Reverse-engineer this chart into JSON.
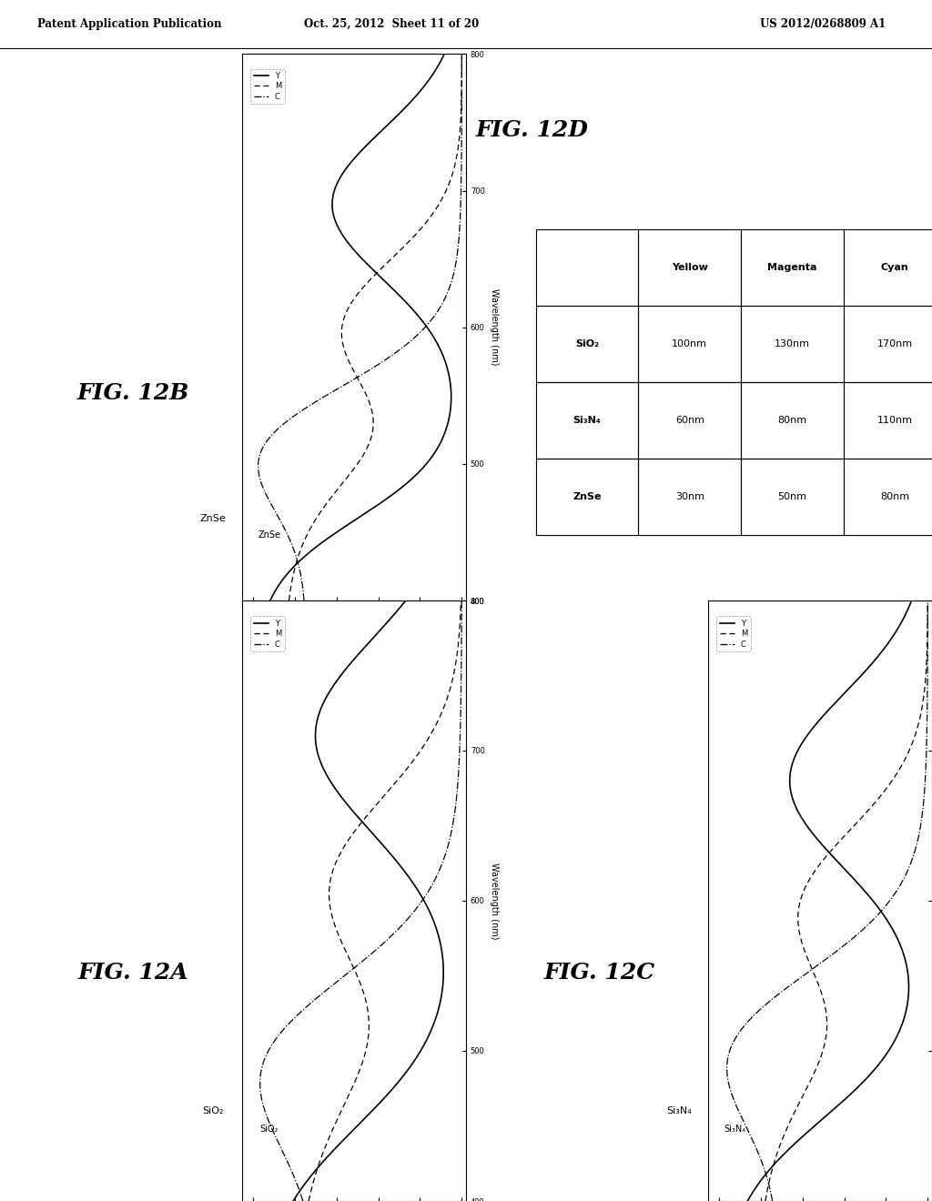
{
  "header_left": "Patent Application Publication",
  "header_mid": "Oct. 25, 2012  Sheet 11 of 20",
  "header_right": "US 2012/0268809 A1",
  "fig12A_title": "FIG. 12A",
  "fig12A_material": "SiO₂",
  "fig12B_title": "FIG. 12B",
  "fig12B_material": "ZnSe",
  "fig12C_title": "FIG. 12C",
  "fig12C_material": "Si₃N₄",
  "fig12D_title": "FIG. 12D",
  "table_rows": [
    [
      "SiO₂",
      "100nm",
      "130nm",
      "170nm"
    ],
    [
      "Si₃N₄",
      "60nm",
      "80nm",
      "110nm"
    ],
    [
      "ZnSe",
      "30nm",
      "50nm",
      "80nm"
    ]
  ],
  "legend_labels": [
    "Y",
    "M",
    "C"
  ],
  "background": "#f5f5f0"
}
